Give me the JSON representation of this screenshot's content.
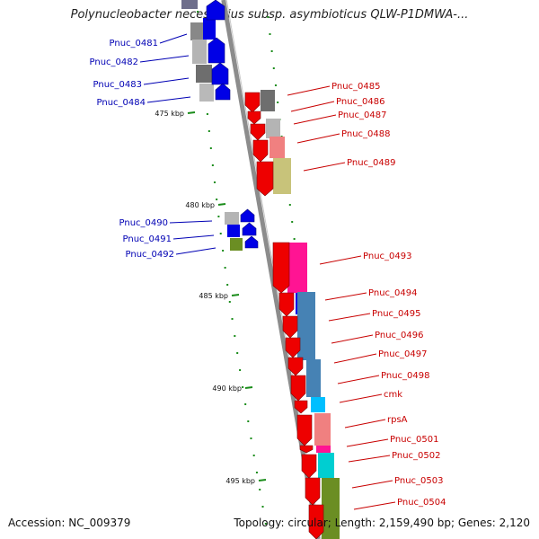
{
  "title": "Polynucleobacter necessarius subsp. asymbioticus QLW-P1DMWA-...",
  "footer": {
    "accession": "Accession: NC_009379",
    "stats": "Topology: circular; Length: 2,159,490 bp; Genes: 2,120"
  },
  "colors": {
    "backbone": "#8c8c8c",
    "minus_label": "#0000b4",
    "plus_label": "#c80000",
    "tick": "#1a8c1a"
  },
  "ticks": [
    {
      "label": "475 kbp"
    },
    {
      "label": "480 kbp"
    },
    {
      "label": "485 kbp"
    },
    {
      "label": "490 kbp"
    },
    {
      "label": "495 kbp"
    }
  ],
  "genes_left": [
    {
      "name": "Pnuc_0481"
    },
    {
      "name": "Pnuc_0482"
    },
    {
      "name": "Pnuc_0483"
    },
    {
      "name": "Pnuc_0484"
    },
    {
      "name": "Pnuc_0490"
    },
    {
      "name": "Pnuc_0491"
    },
    {
      "name": "Pnuc_0492"
    }
  ],
  "genes_right": [
    {
      "name": "Pnuc_0485"
    },
    {
      "name": "Pnuc_0486"
    },
    {
      "name": "Pnuc_0487"
    },
    {
      "name": "Pnuc_0488"
    },
    {
      "name": "Pnuc_0489"
    },
    {
      "name": "Pnuc_0493"
    },
    {
      "name": "Pnuc_0494"
    },
    {
      "name": "Pnuc_0495"
    },
    {
      "name": "Pnuc_0496"
    },
    {
      "name": "Pnuc_0497"
    },
    {
      "name": "Pnuc_0498"
    },
    {
      "name": "cmk"
    },
    {
      "name": "rpsA"
    },
    {
      "name": "Pnuc_0501"
    },
    {
      "name": "Pnuc_0502"
    },
    {
      "name": "Pnuc_0503"
    },
    {
      "name": "Pnuc_0504"
    }
  ]
}
